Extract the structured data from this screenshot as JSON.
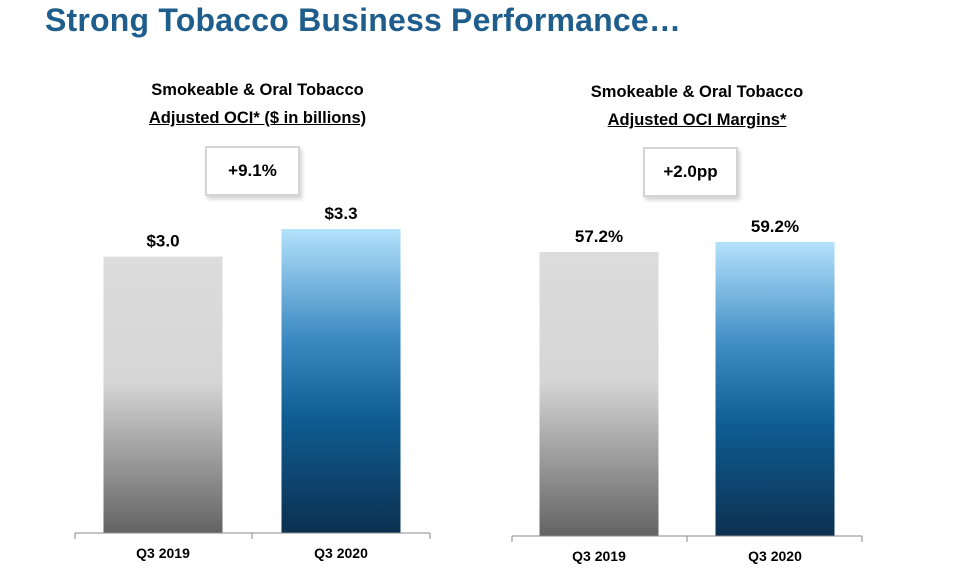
{
  "slide": {
    "title": "Strong Tobacco Business Performance…"
  },
  "chart_data": [
    {
      "type": "bar",
      "title_line1": "Smokeable & Oral Tobacco",
      "title_line2": "Adjusted OCI* ($ in billions)",
      "change_label": "+9.1%",
      "categories": [
        "Q3 2019",
        "Q3 2020"
      ],
      "values": [
        3.0,
        3.3
      ],
      "value_labels": [
        "$3.0",
        "$3.3"
      ],
      "ylim": [
        0,
        3.3
      ],
      "colors": [
        "#c8c8c8",
        "#1f6fa8"
      ]
    },
    {
      "type": "bar",
      "title_line1": "Smokeable & Oral Tobacco",
      "title_line2": "Adjusted OCI Margins*",
      "change_label": "+2.0pp",
      "categories": [
        "Q3 2019",
        "Q3 2020"
      ],
      "values": [
        57.2,
        59.2
      ],
      "value_labels": [
        "57.2%",
        "59.2%"
      ],
      "ylim": [
        0,
        59.2
      ],
      "colors": [
        "#c8c8c8",
        "#1f6fa8"
      ]
    }
  ]
}
